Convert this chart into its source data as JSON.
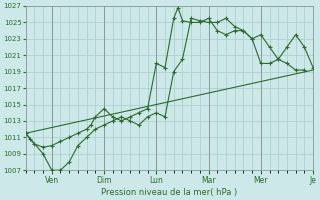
{
  "background_color": "#cce8e8",
  "grid_color": "#aacccc",
  "line_color": "#2d6a2d",
  "xlabel": "Pression niveau de la mer( hPa )",
  "ylim": [
    1007,
    1027
  ],
  "ytick_step": 2,
  "xlim": [
    0,
    33
  ],
  "day_tick_pos": [
    3,
    9,
    15,
    21,
    27,
    33
  ],
  "day_tick_labels": [
    "Ven",
    "Dim",
    "Lun",
    "Mar",
    "Mer",
    "Je"
  ],
  "series1_x": [
    0,
    0.5,
    1,
    2,
    3,
    4,
    5,
    6,
    7,
    7.5,
    8,
    9,
    10,
    11,
    12,
    13,
    14,
    15,
    16,
    17,
    17.5,
    18,
    19,
    20,
    21,
    22,
    23,
    24,
    25,
    26,
    27,
    28,
    29,
    30,
    31,
    32,
    33
  ],
  "series1_y": [
    1011.5,
    1010.8,
    1010.2,
    1009.8,
    1010.0,
    1010.5,
    1011.0,
    1011.5,
    1012.0,
    1012.5,
    1013.5,
    1014.5,
    1013.5,
    1013.0,
    1013.5,
    1014.0,
    1014.5,
    1020.0,
    1019.5,
    1025.5,
    1026.8,
    1025.2,
    1025.0,
    1025.0,
    1025.5,
    1024.0,
    1023.5,
    1024.0,
    1024.0,
    1023.0,
    1023.5,
    1022.0,
    1020.5,
    1022.0,
    1023.5,
    1022.0,
    1019.5
  ],
  "series2_x": [
    0,
    2,
    3,
    4,
    5,
    6,
    7,
    8,
    9,
    10,
    11,
    12,
    13,
    14,
    15,
    16,
    17,
    18,
    19,
    20,
    21,
    22,
    23,
    24,
    25,
    26,
    27,
    28,
    29,
    30,
    31,
    32
  ],
  "series2_y": [
    1011.5,
    1009.0,
    1007.0,
    1007.0,
    1008.0,
    1010.0,
    1011.0,
    1012.0,
    1012.5,
    1013.0,
    1013.5,
    1013.0,
    1012.5,
    1013.5,
    1014.0,
    1013.5,
    1019.0,
    1020.5,
    1025.5,
    1025.2,
    1025.0,
    1025.0,
    1025.5,
    1024.5,
    1024.0,
    1023.0,
    1020.0,
    1020.0,
    1020.5,
    1020.0,
    1019.2,
    1019.2
  ],
  "series3_x": [
    0,
    33
  ],
  "series3_y": [
    1011.5,
    1019.2
  ]
}
